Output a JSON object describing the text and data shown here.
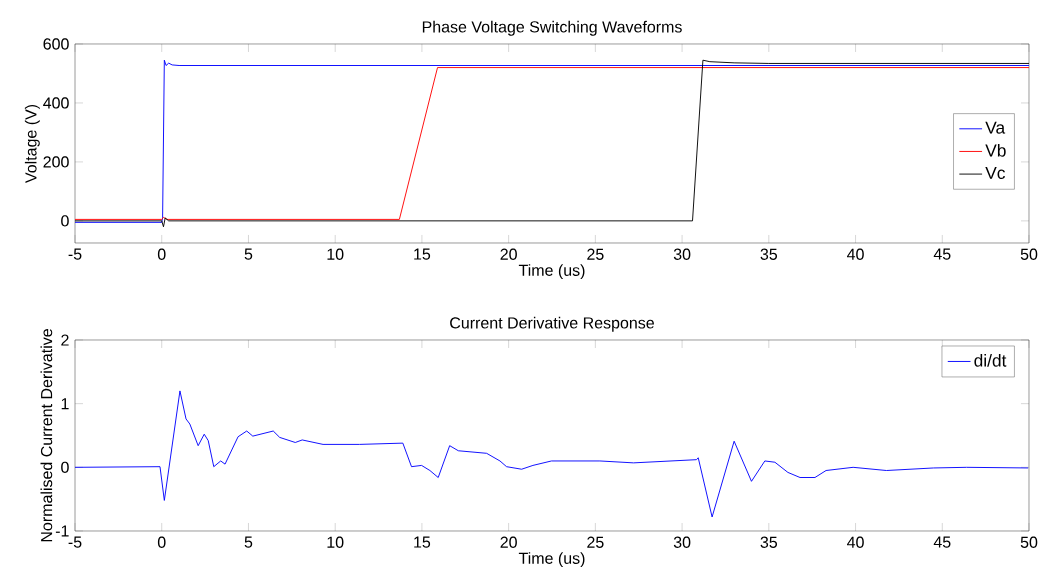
{
  "chart_data": [
    {
      "type": "line",
      "title": "Phase Voltage Switching Waveforms",
      "xlabel": "Time (us)",
      "ylabel": "Voltage (V)",
      "xlim": [
        -5,
        50
      ],
      "xticks": [
        -5,
        0,
        5,
        10,
        15,
        20,
        25,
        30,
        35,
        40,
        45,
        50
      ],
      "ylim": [
        -75,
        600
      ],
      "yticks": [
        0,
        200,
        400,
        600
      ],
      "legend": "right",
      "series": [
        {
          "name": "Va",
          "color": "#0000ff",
          "x": [
            -5,
            0,
            0.05,
            0.15,
            0.25,
            0.4,
            0.6,
            1,
            5,
            16,
            50
          ],
          "values": [
            -5,
            -5,
            10,
            545,
            527,
            535,
            529,
            527,
            527,
            527,
            527
          ]
        },
        {
          "name": "Vb",
          "color": "#ff0000",
          "x": [
            -5,
            0,
            0.1,
            0.3,
            13.7,
            15.9,
            50
          ],
          "values": [
            5,
            5,
            12,
            5,
            5,
            520,
            520
          ]
        },
        {
          "name": "Vc",
          "color": "#000000",
          "x": [
            -5,
            0,
            0.1,
            0.2,
            0.4,
            30.6,
            31.2,
            31.6,
            33,
            35,
            50
          ],
          "values": [
            0,
            0,
            -20,
            10,
            0,
            0,
            545,
            540,
            536,
            534,
            534
          ]
        }
      ]
    },
    {
      "type": "line",
      "title": "Current Derivative Response",
      "xlabel": "Time (us)",
      "ylabel": "Normalised Current Derivative",
      "xlim": [
        -5,
        50
      ],
      "xticks": [
        -5,
        0,
        5,
        10,
        15,
        20,
        25,
        30,
        35,
        40,
        45,
        50
      ],
      "ylim": [
        -1,
        2
      ],
      "yticks": [
        -1,
        0,
        1,
        2
      ],
      "legend": "top right",
      "series": [
        {
          "name": "di/dt",
          "color": "#0000ff",
          "x": [
            -5,
            -0.1,
            0.15,
            1.05,
            1.4,
            1.62,
            2.1,
            2.45,
            2.68,
            3.0,
            3.4,
            3.65,
            4.4,
            4.9,
            5.25,
            6.43,
            6.8,
            7.7,
            8.1,
            9.3,
            11.4,
            13.9,
            14.4,
            14.98,
            15.46,
            15.94,
            16.6,
            17.1,
            18.73,
            19.5,
            19.88,
            20.75,
            21.4,
            22.47,
            25.26,
            27.2,
            30.83,
            30.93,
            31.73,
            33.0,
            34.0,
            34.77,
            35.35,
            36.1,
            36.8,
            37.66,
            38.3,
            39.86,
            41.78,
            44.5,
            46.4,
            49.95
          ],
          "values": [
            0,
            0.01,
            -0.52,
            1.2,
            0.76,
            0.68,
            0.34,
            0.52,
            0.42,
            0.01,
            0.1,
            0.05,
            0.48,
            0.57,
            0.49,
            0.57,
            0.47,
            0.39,
            0.43,
            0.36,
            0.36,
            0.38,
            0.01,
            0.03,
            -0.05,
            -0.16,
            0.34,
            0.26,
            0.22,
            0.1,
            0.01,
            -0.03,
            0.03,
            0.1,
            0.1,
            0.07,
            0.12,
            0.15,
            -0.78,
            0.41,
            -0.22,
            0.1,
            0.08,
            -0.08,
            -0.16,
            -0.16,
            -0.05,
            0,
            -0.05,
            -0.01,
            0,
            -0.01
          ]
        }
      ]
    }
  ]
}
